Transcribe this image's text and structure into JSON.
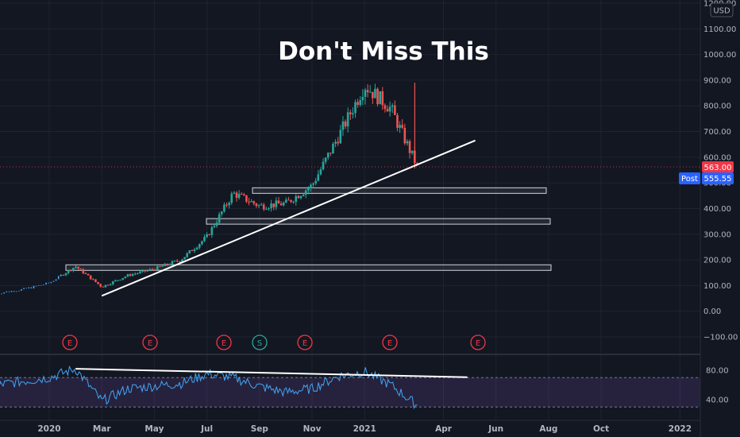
{
  "title": "Don't Miss This",
  "currency": "USD",
  "price_label": "563.00",
  "post_label": "Post",
  "post_price": "555.55",
  "colors": {
    "background": "#131722",
    "up": "#26a69a",
    "down": "#ef5350",
    "rsi": "#42a5f5",
    "price_badge": "#f23645",
    "post_badge": "#2962ff"
  },
  "chart_data": {
    "type": "candlestick",
    "price_axis": {
      "ticks": [
        "1200.00",
        "1100.00",
        "1000.00",
        "900.00",
        "800.00",
        "700.00",
        "600.00",
        "500.00",
        "400.00",
        "300.00",
        "200.00",
        "100.00",
        "0.00",
        "−100.00"
      ],
      "range": [
        -100,
        1200
      ]
    },
    "time_axis": {
      "ticks": [
        "2020",
        "Mar",
        "May",
        "Jul",
        "Sep",
        "Nov",
        "2021",
        "Apr",
        "Jun",
        "Aug",
        "Oct",
        "2022"
      ]
    },
    "price_path": [
      {
        "x": "Nov 2019",
        "y": 70
      },
      {
        "x": "Dec 2019",
        "y": 85
      },
      {
        "x": "Jan 2020",
        "y": 110
      },
      {
        "x": "Feb 2020",
        "y": 175
      },
      {
        "x": "Mar 2020",
        "y": 95
      },
      {
        "x": "Apr 2020",
        "y": 140
      },
      {
        "x": "May 2020",
        "y": 165
      },
      {
        "x": "Jun 2020",
        "y": 200
      },
      {
        "x": "Jul 2020",
        "y": 290
      },
      {
        "x": "Aug 2020",
        "y": 460
      },
      {
        "x": "Sep 2020",
        "y": 410
      },
      {
        "x": "Oct 2020",
        "y": 420
      },
      {
        "x": "Nov 2020",
        "y": 490
      },
      {
        "x": "Dec 2020",
        "y": 680
      },
      {
        "x": "Jan 2021",
        "y": 880
      },
      {
        "x": "Feb 2021",
        "y": 790
      },
      {
        "x": "Mar 2021",
        "y": 563
      }
    ],
    "support_zones": [
      470,
      350,
      170
    ],
    "trendline": [
      {
        "x": "Mar 2020",
        "y": 60
      },
      {
        "x": "May 2021",
        "y": 665
      }
    ],
    "events": [
      "E",
      "E",
      "E",
      "S",
      "E",
      "E",
      "E"
    ],
    "rsi": {
      "ticks": [
        "80.00",
        "40.00"
      ],
      "path": [
        {
          "x": "Nov 2019",
          "y": 60
        },
        {
          "x": "Jan 2020",
          "y": 70
        },
        {
          "x": "Feb 2020",
          "y": 82
        },
        {
          "x": "Mar 2020",
          "y": 38
        },
        {
          "x": "Apr 2020",
          "y": 55
        },
        {
          "x": "Jun 2020",
          "y": 62
        },
        {
          "x": "Jul 2020",
          "y": 75
        },
        {
          "x": "Aug 2020",
          "y": 70
        },
        {
          "x": "Sep 2020",
          "y": 58
        },
        {
          "x": "Oct 2020",
          "y": 50
        },
        {
          "x": "Nov 2020",
          "y": 55
        },
        {
          "x": "Dec 2020",
          "y": 72
        },
        {
          "x": "Jan 2021",
          "y": 78
        },
        {
          "x": "Feb 2021",
          "y": 60
        },
        {
          "x": "Mar 2021",
          "y": 32
        }
      ],
      "trendline": [
        {
          "x": "Feb 2020",
          "y": 82
        },
        {
          "x": "May 2021",
          "y": 76
        }
      ]
    }
  }
}
